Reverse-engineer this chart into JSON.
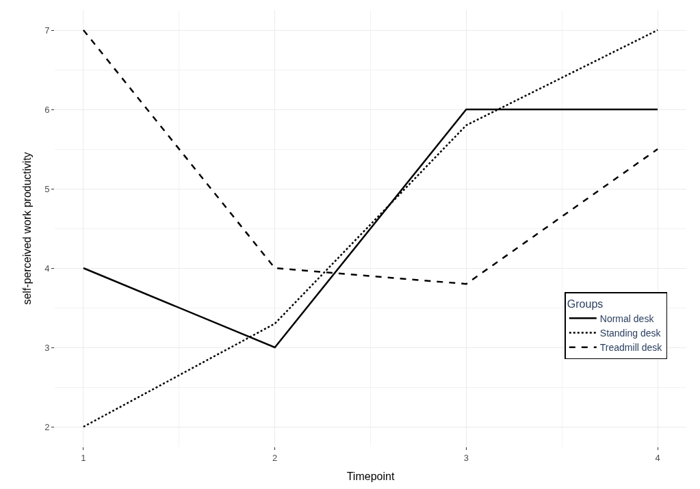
{
  "chart_data": {
    "type": "line",
    "xlabel": "Timepoint",
    "ylabel": "self-perceived work productivity",
    "legend_title": "Groups",
    "x": [
      1,
      2,
      3,
      4
    ],
    "series": [
      {
        "name": "Normal desk",
        "color": "#000000",
        "line_style": "solid",
        "values": [
          4,
          3,
          6,
          6
        ]
      },
      {
        "name": "Standing desk",
        "color": "#000000",
        "line_style": "dotted",
        "values": [
          2,
          3.3,
          5.8,
          7
        ]
      },
      {
        "name": "Treadmill desk",
        "color": "#000000",
        "line_style": "dashed",
        "values": [
          7,
          4,
          3.8,
          5.5
        ]
      }
    ],
    "xlim": [
      0.85,
      4.15
    ],
    "xticks": [
      1,
      2,
      3,
      4
    ],
    "ylim": [
      1.75,
      7.25
    ],
    "yticks": [
      2,
      3,
      4,
      5,
      6,
      7
    ],
    "grid": true,
    "legend": "bottom right",
    "marker": "none"
  }
}
